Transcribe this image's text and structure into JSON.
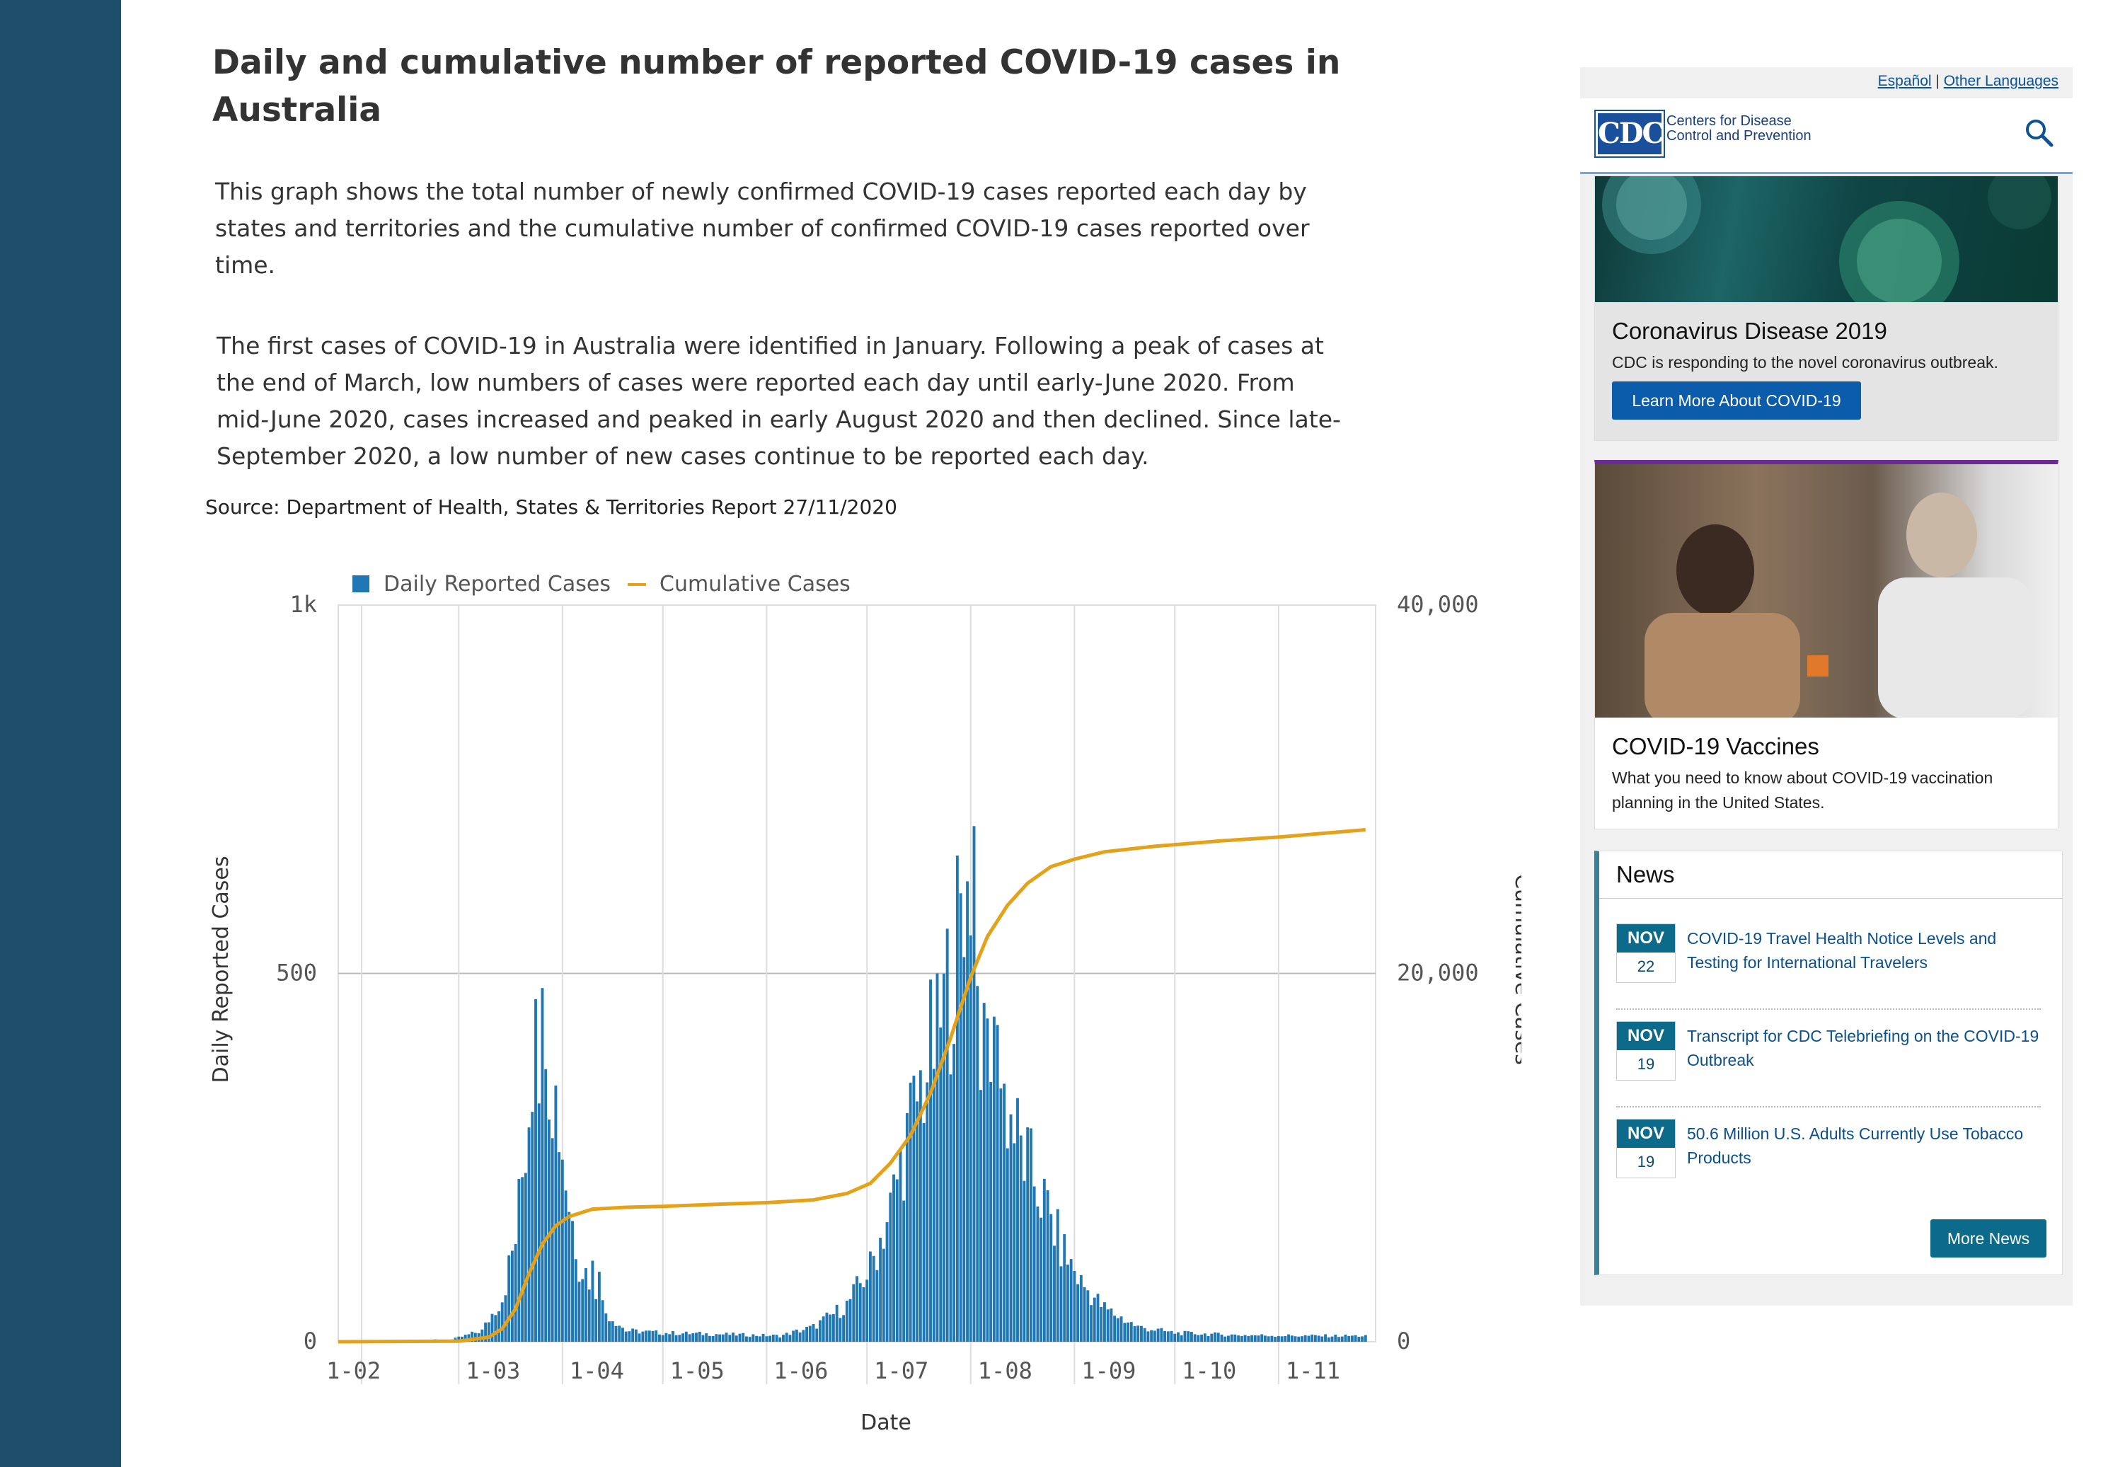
{
  "page": {
    "title": "Daily and cumulative number of reported COVID-19 cases in Australia",
    "para1": "This graph shows the total number of newly confirmed COVID-19 cases reported each day by states and territories and the cumulative number of confirmed COVID-19 cases reported over time.",
    "para2": "The first cases of COVID-19 in Australia were identified in January. Following a peak of cases at the end of March, low numbers of cases were reported each day until early-June 2020. From mid-June 2020, cases increased and peaked in early August 2020 and then declined. Since late-September 2020, a low number of new cases continue to be reported each day.",
    "source": "Source: Department of Health, States & Territories Report 27/11/2020"
  },
  "chart_data": {
    "type": "bar",
    "xlabel": "Date",
    "ylabel": "Daily Reported Cases",
    "y2label": "Cumulative Cases",
    "ylim": [
      0,
      1000
    ],
    "y2lim": [
      0,
      40000
    ],
    "yticks": [
      "0",
      "500",
      "1k"
    ],
    "y2ticks": [
      "0",
      "20,000",
      "40,000"
    ],
    "xticks": [
      "1-02",
      "1-03",
      "1-04",
      "1-05",
      "1-06",
      "1-07",
      "1-08",
      "1-09",
      "1-10",
      "1-11"
    ],
    "legend_placement": "top",
    "grid": true,
    "series": [
      {
        "name": "Daily Reported Cases",
        "kind": "bar",
        "color": "#1f77b4",
        "x_start": "2020-01-25",
        "x_end": "2020-11-27",
        "keyframes": [
          [
            "2020-01-25",
            0
          ],
          [
            "2020-02-28",
            3
          ],
          [
            "2020-03-08",
            15
          ],
          [
            "2020-03-14",
            60
          ],
          [
            "2020-03-18",
            140
          ],
          [
            "2020-03-21",
            270
          ],
          [
            "2020-03-23",
            380
          ],
          [
            "2020-03-25",
            420
          ],
          [
            "2020-03-28",
            390
          ],
          [
            "2020-03-31",
            300
          ],
          [
            "2020-04-03",
            190
          ],
          [
            "2020-04-06",
            110
          ],
          [
            "2020-04-10",
            80
          ],
          [
            "2020-04-14",
            40
          ],
          [
            "2020-04-20",
            15
          ],
          [
            "2020-05-01",
            12
          ],
          [
            "2020-05-20",
            10
          ],
          [
            "2020-06-05",
            8
          ],
          [
            "2020-06-15",
            20
          ],
          [
            "2020-06-25",
            50
          ],
          [
            "2020-07-02",
            100
          ],
          [
            "2020-07-08",
            180
          ],
          [
            "2020-07-12",
            260
          ],
          [
            "2020-07-18",
            360
          ],
          [
            "2020-07-24",
            450
          ],
          [
            "2020-07-28",
            550
          ],
          [
            "2020-08-01",
            520
          ],
          [
            "2020-08-04",
            440
          ],
          [
            "2020-08-08",
            380
          ],
          [
            "2020-08-12",
            320
          ],
          [
            "2020-08-16",
            260
          ],
          [
            "2020-08-22",
            200
          ],
          [
            "2020-08-28",
            130
          ],
          [
            "2020-09-03",
            80
          ],
          [
            "2020-09-10",
            45
          ],
          [
            "2020-09-20",
            20
          ],
          [
            "2020-10-01",
            12
          ],
          [
            "2020-10-20",
            9
          ],
          [
            "2020-11-10",
            8
          ],
          [
            "2020-11-27",
            8
          ]
        ],
        "highlights": [
          [
            "2020-03-24",
            465
          ],
          [
            "2020-03-27",
            370
          ],
          [
            "2020-04-10",
            110
          ],
          [
            "2020-04-12",
            95
          ],
          [
            "2020-07-22",
            500
          ],
          [
            "2020-07-28",
            660
          ],
          [
            "2020-07-31",
            625
          ],
          [
            "2020-08-02",
            700
          ],
          [
            "2020-08-05",
            460
          ],
          [
            "2020-08-09",
            430
          ]
        ]
      },
      {
        "name": "Cumulative Cases",
        "kind": "line",
        "color": "#e3a21a",
        "points": [
          [
            "2020-01-25",
            0
          ],
          [
            "2020-03-01",
            30
          ],
          [
            "2020-03-10",
            250
          ],
          [
            "2020-03-14",
            700
          ],
          [
            "2020-03-18",
            1800
          ],
          [
            "2020-03-22",
            3700
          ],
          [
            "2020-03-26",
            5300
          ],
          [
            "2020-03-30",
            6300
          ],
          [
            "2020-04-03",
            6800
          ],
          [
            "2020-04-10",
            7200
          ],
          [
            "2020-04-20",
            7300
          ],
          [
            "2020-05-01",
            7350
          ],
          [
            "2020-05-15",
            7450
          ],
          [
            "2020-06-01",
            7550
          ],
          [
            "2020-06-15",
            7700
          ],
          [
            "2020-06-25",
            8050
          ],
          [
            "2020-07-02",
            8600
          ],
          [
            "2020-07-08",
            9700
          ],
          [
            "2020-07-14",
            11200
          ],
          [
            "2020-07-20",
            13500
          ],
          [
            "2020-07-26",
            16500
          ],
          [
            "2020-08-01",
            19800
          ],
          [
            "2020-08-06",
            22000
          ],
          [
            "2020-08-12",
            23700
          ],
          [
            "2020-08-18",
            24900
          ],
          [
            "2020-08-25",
            25800
          ],
          [
            "2020-09-01",
            26200
          ],
          [
            "2020-09-10",
            26600
          ],
          [
            "2020-09-25",
            26900
          ],
          [
            "2020-10-15",
            27200
          ],
          [
            "2020-11-01",
            27400
          ],
          [
            "2020-11-27",
            27800
          ]
        ]
      }
    ]
  },
  "sidebar": {
    "lang_es": "Español",
    "lang_sep": "|",
    "lang_other": "Other Languages",
    "cdc_logo_text": "CDC",
    "cdc_name": "Centers for Disease Control and Prevention",
    "card1_title": "Coronavirus Disease 2019",
    "card1_sub": "CDC is responding to the novel coronavirus outbreak.",
    "card1_button": "Learn More About COVID-19",
    "card2_title": "COVID-19 Vaccines",
    "card2_sub": "What you need to know about COVID-19 vaccination planning in the United States.",
    "news_title": "News",
    "news": [
      {
        "month": "NOV",
        "day": "22",
        "text": "COVID-19 Travel Health Notice Levels and Testing for International Travelers"
      },
      {
        "month": "NOV",
        "day": "19",
        "text": "Transcript for CDC Telebriefing on the COVID-19 Outbreak"
      },
      {
        "month": "NOV",
        "day": "19",
        "text": "50.6 Million U.S. Adults Currently Use Tobacco Products"
      }
    ],
    "more_news": "More News"
  }
}
